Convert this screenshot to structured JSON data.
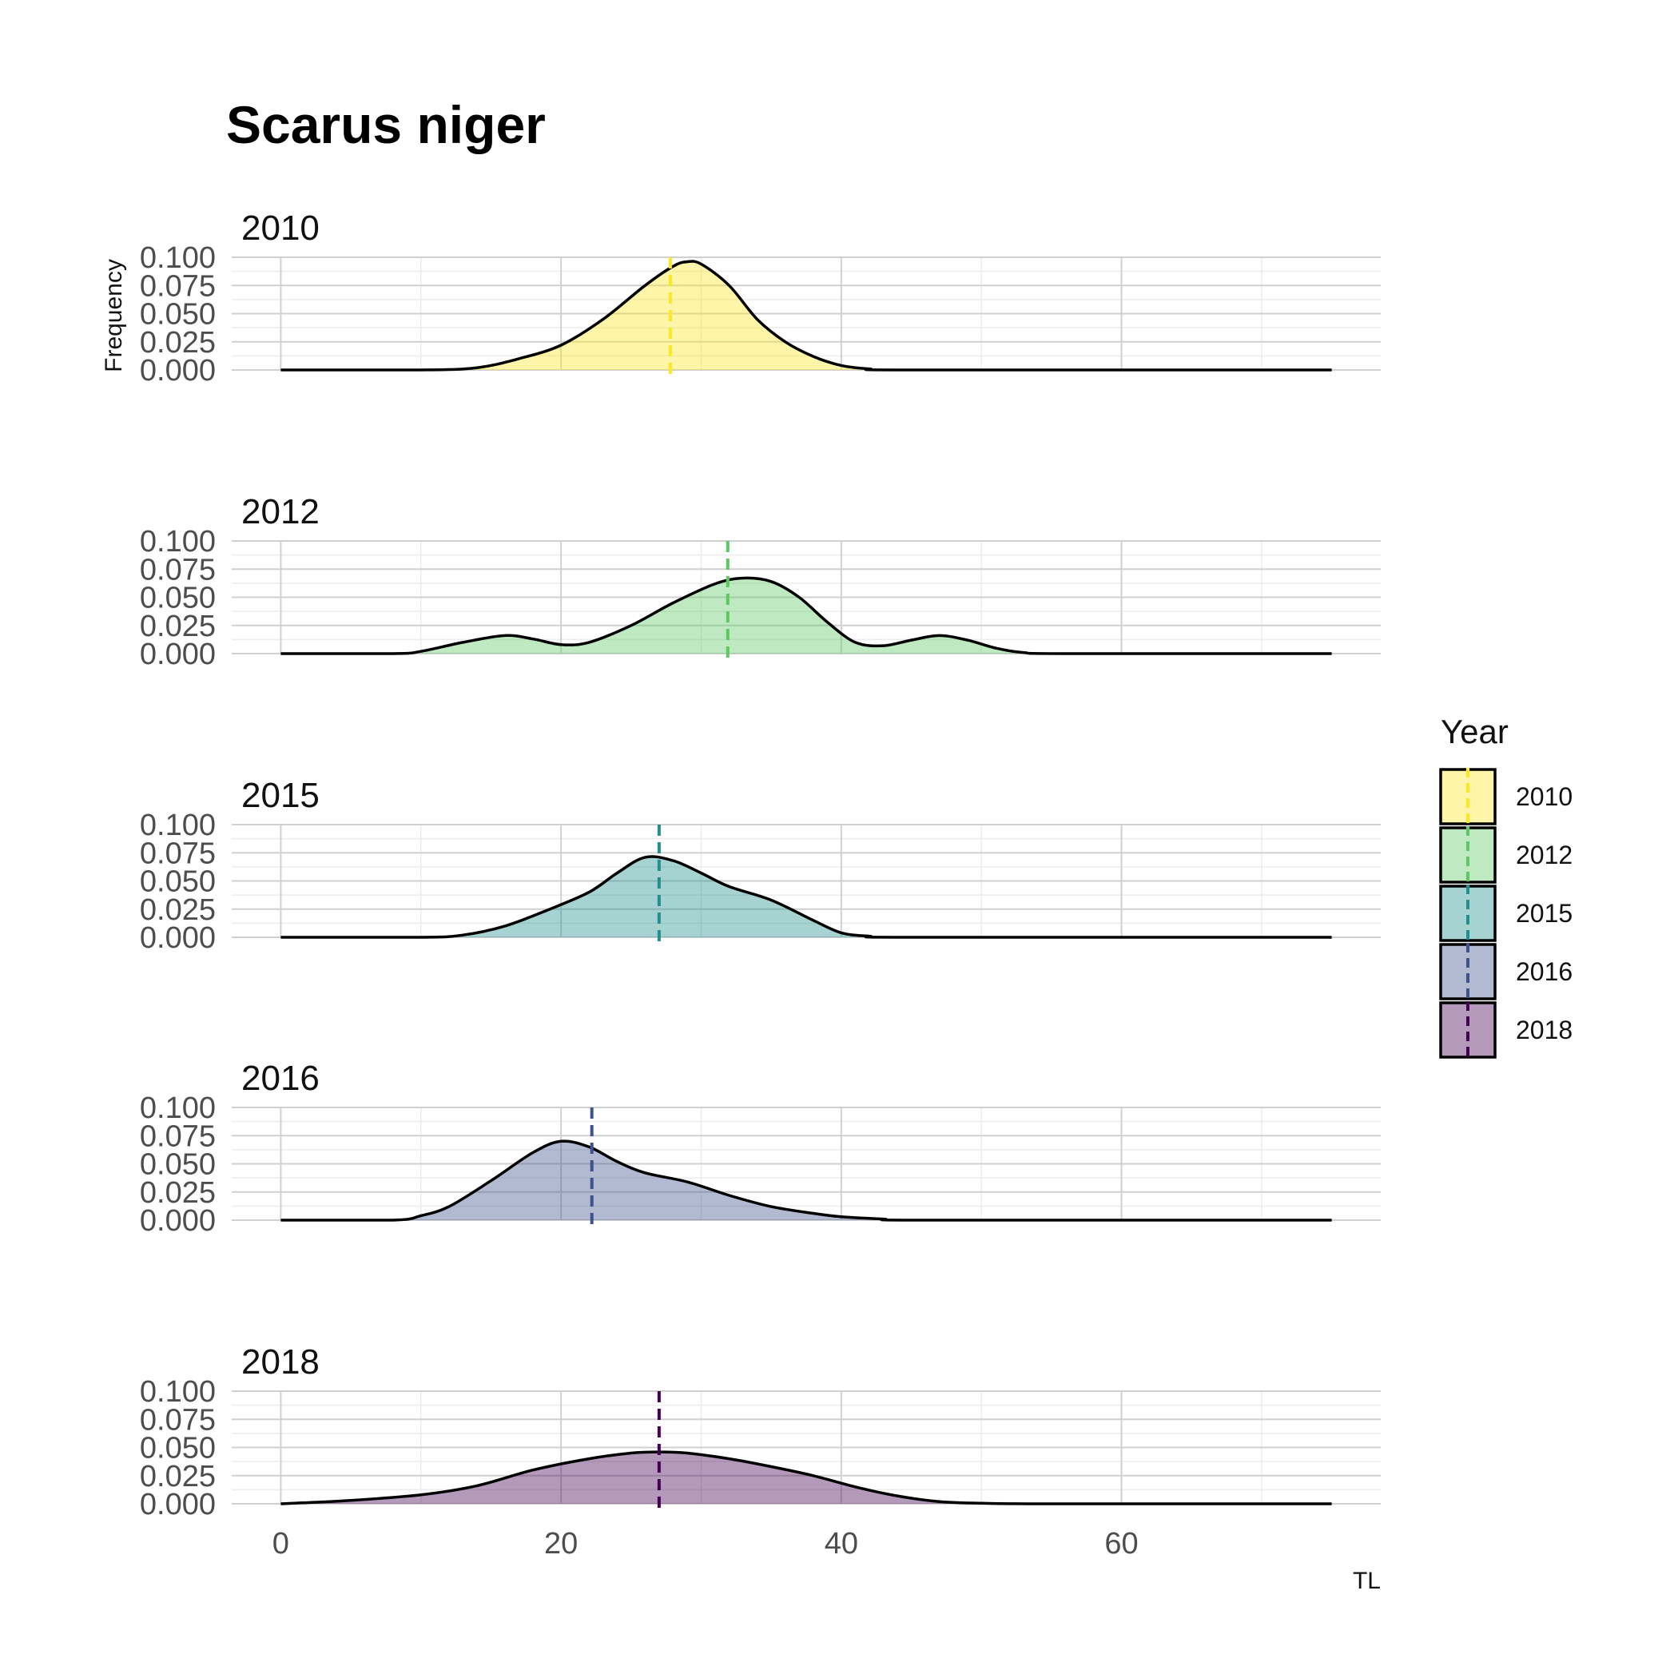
{
  "chart_data": {
    "type": "area",
    "title": "Scarus niger",
    "xlabel": "TL",
    "ylabel": "Frequency",
    "xlim": [
      -3.5,
      78.5
    ],
    "ylim": [
      0,
      0.1
    ],
    "x_ticks": [
      0,
      20,
      40,
      60
    ],
    "x_tick_labels": [
      "0",
      "20",
      "40",
      "60"
    ],
    "y_ticks": [
      0,
      0.025,
      0.05,
      0.075,
      0.1
    ],
    "y_tick_labels": [
      "0.000",
      "0.025",
      "0.050",
      "0.075",
      "0.100"
    ],
    "grid": true,
    "legend": {
      "title": "Year",
      "position": "right"
    },
    "series": [
      {
        "name": "2010",
        "color": "#FDE725",
        "mean": 27.8,
        "points": [
          [
            0,
            0
          ],
          [
            10,
            0
          ],
          [
            14,
            0.002
          ],
          [
            17,
            0.01
          ],
          [
            20,
            0.022
          ],
          [
            23,
            0.045
          ],
          [
            26,
            0.075
          ],
          [
            28,
            0.092
          ],
          [
            29,
            0.096
          ],
          [
            30,
            0.094
          ],
          [
            32,
            0.075
          ],
          [
            34,
            0.045
          ],
          [
            36,
            0.025
          ],
          [
            38,
            0.012
          ],
          [
            40,
            0.004
          ],
          [
            42,
            0.001
          ],
          [
            45,
            0
          ],
          [
            75,
            0
          ]
        ]
      },
      {
        "name": "2012",
        "color": "#5DC863",
        "mean": 31.9,
        "points": [
          [
            0,
            0
          ],
          [
            8,
            0
          ],
          [
            10,
            0.002
          ],
          [
            13,
            0.01
          ],
          [
            16,
            0.016
          ],
          [
            18,
            0.013
          ],
          [
            20,
            0.008
          ],
          [
            22,
            0.01
          ],
          [
            25,
            0.025
          ],
          [
            28,
            0.045
          ],
          [
            31,
            0.062
          ],
          [
            33,
            0.067
          ],
          [
            35,
            0.064
          ],
          [
            37,
            0.05
          ],
          [
            39,
            0.028
          ],
          [
            41,
            0.01
          ],
          [
            43,
            0.007
          ],
          [
            45,
            0.012
          ],
          [
            47,
            0.016
          ],
          [
            49,
            0.012
          ],
          [
            51,
            0.005
          ],
          [
            53,
            0.001
          ],
          [
            56,
            0
          ],
          [
            75,
            0
          ]
        ]
      },
      {
        "name": "2015",
        "color": "#21908C",
        "mean": 27.0,
        "points": [
          [
            0,
            0
          ],
          [
            10,
            0
          ],
          [
            13,
            0.002
          ],
          [
            16,
            0.01
          ],
          [
            19,
            0.024
          ],
          [
            22,
            0.04
          ],
          [
            24,
            0.057
          ],
          [
            26,
            0.071
          ],
          [
            28,
            0.068
          ],
          [
            30,
            0.057
          ],
          [
            32,
            0.045
          ],
          [
            35,
            0.033
          ],
          [
            38,
            0.015
          ],
          [
            40,
            0.004
          ],
          [
            42,
            0.001
          ],
          [
            45,
            0
          ],
          [
            75,
            0
          ]
        ]
      },
      {
        "name": "2016",
        "color": "#3B528B",
        "mean": 22.2,
        "points": [
          [
            0,
            0
          ],
          [
            8,
            0
          ],
          [
            10,
            0.004
          ],
          [
            12,
            0.012
          ],
          [
            15,
            0.035
          ],
          [
            18,
            0.06
          ],
          [
            20,
            0.07
          ],
          [
            22,
            0.065
          ],
          [
            24,
            0.052
          ],
          [
            26,
            0.042
          ],
          [
            29,
            0.034
          ],
          [
            32,
            0.022
          ],
          [
            35,
            0.012
          ],
          [
            38,
            0.006
          ],
          [
            40,
            0.003
          ],
          [
            43,
            0.001
          ],
          [
            46,
            0
          ],
          [
            75,
            0
          ]
        ]
      },
      {
        "name": "2018",
        "color": "#440154",
        "mean": 27.0,
        "points": [
          [
            0,
            0
          ],
          [
            5,
            0.003
          ],
          [
            10,
            0.008
          ],
          [
            14,
            0.016
          ],
          [
            18,
            0.03
          ],
          [
            22,
            0.04
          ],
          [
            25,
            0.045
          ],
          [
            27,
            0.046
          ],
          [
            29,
            0.045
          ],
          [
            32,
            0.04
          ],
          [
            35,
            0.033
          ],
          [
            38,
            0.025
          ],
          [
            41,
            0.015
          ],
          [
            44,
            0.007
          ],
          [
            47,
            0.002
          ],
          [
            50,
            0.0005
          ],
          [
            55,
            0
          ],
          [
            75,
            0
          ]
        ]
      }
    ]
  }
}
